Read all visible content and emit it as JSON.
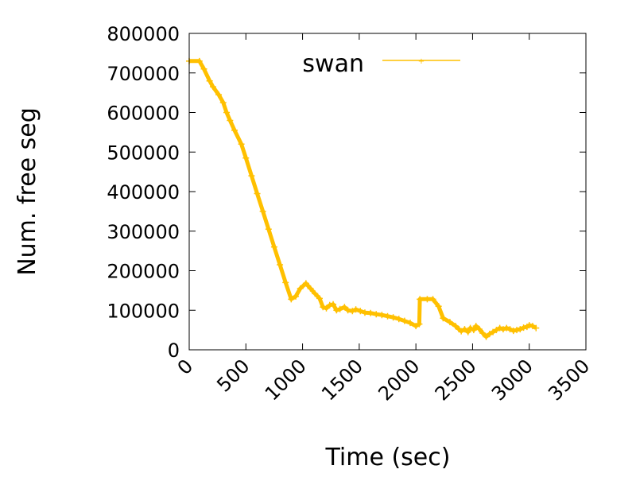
{
  "chart_data": {
    "type": "line",
    "title": "",
    "xlabel": "Time (sec)",
    "ylabel": "Num. free seg",
    "xlim": [
      0,
      3500
    ],
    "ylim": [
      0,
      800000
    ],
    "xticks": [
      0,
      500,
      1000,
      1500,
      2000,
      2500,
      3000,
      3500
    ],
    "yticks": [
      0,
      100000,
      200000,
      300000,
      400000,
      500000,
      600000,
      700000,
      800000
    ],
    "xtick_labels": [
      "0",
      "500",
      "1000",
      "1500",
      "2000",
      "2500",
      "3000",
      "3500"
    ],
    "ytick_labels": [
      "0",
      "100000",
      "200000",
      "300000",
      "400000",
      "500000",
      "600000",
      "700000",
      "800000"
    ],
    "legend": {
      "position": "top-center"
    },
    "grid": false,
    "series": [
      {
        "name": "swan",
        "color": "#ffc000",
        "marker": "plus",
        "x": [
          0,
          90,
          130,
          180,
          210,
          260,
          300,
          330,
          360,
          400,
          460,
          500,
          550,
          600,
          650,
          700,
          750,
          800,
          850,
          900,
          940,
          980,
          1030,
          1070,
          1110,
          1150,
          1180,
          1210,
          1240,
          1270,
          1300,
          1330,
          1370,
          1400,
          1440,
          1470,
          1510,
          1550,
          1600,
          1650,
          1700,
          1750,
          1800,
          1850,
          1900,
          1950,
          2000,
          2030,
          2035,
          2100,
          2150,
          2200,
          2240,
          2300,
          2350,
          2380,
          2400,
          2430,
          2460,
          2480,
          2510,
          2530,
          2560,
          2590,
          2620,
          2650,
          2680,
          2710,
          2740,
          2770,
          2800,
          2830,
          2860,
          2890,
          2920,
          2950,
          2980,
          3000,
          3030,
          3060
        ],
        "y": [
          730000,
          730000,
          710000,
          680000,
          665000,
          645000,
          625000,
          600000,
          580000,
          555000,
          520000,
          485000,
          440000,
          395000,
          350000,
          305000,
          260000,
          215000,
          170000,
          128000,
          135000,
          155000,
          168000,
          155000,
          142000,
          130000,
          108000,
          105000,
          113000,
          115000,
          100000,
          103000,
          108000,
          100000,
          98000,
          102000,
          98000,
          94000,
          93000,
          90000,
          88000,
          85000,
          82000,
          78000,
          73000,
          68000,
          60000,
          65000,
          128000,
          128000,
          128000,
          110000,
          80000,
          70000,
          60000,
          52000,
          47000,
          52000,
          45000,
          55000,
          50000,
          60000,
          52000,
          42000,
          33000,
          40000,
          45000,
          50000,
          55000,
          52000,
          55000,
          52000,
          48000,
          50000,
          52000,
          56000,
          58000,
          62000,
          60000,
          55000
        ]
      }
    ]
  }
}
